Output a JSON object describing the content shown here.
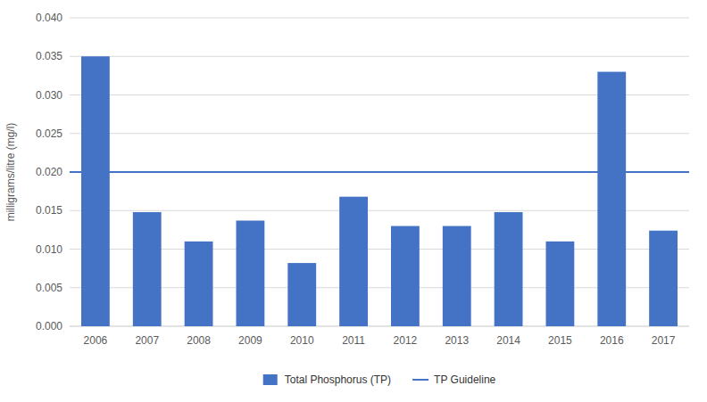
{
  "chart_data": {
    "type": "bar",
    "categories": [
      "2006",
      "2007",
      "2008",
      "2009",
      "2010",
      "2011",
      "2012",
      "2013",
      "2014",
      "2015",
      "2016",
      "2017"
    ],
    "series": [
      {
        "name": "Total Phosphorus (TP)",
        "type": "bar",
        "color": "#4472C4",
        "values": [
          0.035,
          0.0148,
          0.011,
          0.0137,
          0.0082,
          0.0168,
          0.013,
          0.013,
          0.0148,
          0.011,
          0.033,
          0.0124
        ]
      }
    ],
    "reference_lines": [
      {
        "name": "TP Guideline",
        "value": 0.02,
        "color": "#4472C4"
      }
    ],
    "y_label": "milligrams/litre (mg/l)",
    "ylim": [
      0,
      0.04
    ],
    "yticks": [
      {
        "value": 0,
        "label": "0.000"
      },
      {
        "value": 0.005,
        "label": "0.005"
      },
      {
        "value": 0.01,
        "label": "0.010"
      },
      {
        "value": 0.015,
        "label": "0.015"
      },
      {
        "value": 0.02,
        "label": "0.020"
      },
      {
        "value": 0.025,
        "label": "0.025"
      },
      {
        "value": 0.03,
        "label": "0.030"
      },
      {
        "value": 0.035,
        "label": "0.035"
      },
      {
        "value": 0.04,
        "label": "0.040"
      }
    ],
    "grid": true,
    "legend": "bottom"
  }
}
